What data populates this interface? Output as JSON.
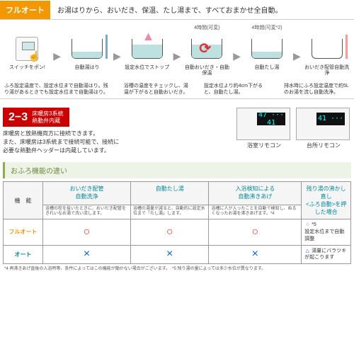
{
  "header": {
    "badge": "フルオート",
    "text": "お湯はりから、おいだき、保温、たし湯まで、すべておまかせ全自動。"
  },
  "icons": [
    {
      "timing": "",
      "label": "スイッチをポン!"
    },
    {
      "timing": "",
      "label": "自動湯はり"
    },
    {
      "timing": "",
      "label": "設定水位でストップ"
    },
    {
      "timing": "4時間(可変)",
      "label": "自動おいだき・自動保温"
    },
    {
      "timing": "4時間(可変*2)",
      "label": "自動たし湯"
    },
    {
      "timing": "",
      "label": "おいだき配管自動洗浄"
    }
  ],
  "descs": [
    "ふろ設定温度で、設定水位まで自動湯はり。残り湯があるときでも設定水位まで自動湯はり。",
    "浴槽の温度をチェックし、湯温が下がると自動おいだき。",
    "設定水位より約4cm下がると、自動たし湯。",
    "排水時にふろ設定温度で約5Lのお湯を流し自動洗浄。"
  ],
  "sec2": {
    "num": "2−3",
    "badge": "床暖房3系統\n熱動弁内蔵",
    "desc": "床暖房と放熱機両方に接続できます。\nまた、床暖房は3系統まで接続可能で、接続に\n必要な熱動弁ヘッダーは内蔵しています。"
  },
  "remotes": [
    {
      "disp": "47 ··· 41",
      "label": "浴室リモコン"
    },
    {
      "disp": "41 ···",
      "label": "台所リモコン"
    }
  ],
  "table": {
    "title": "おふろ機能の違い",
    "row_header": "機　能",
    "cols": [
      {
        "h": "おいだき配管\n自動洗浄",
        "sub": "浴槽の栓を抜いたときに、おいだき配管をきれいなお湯で洗い流します。"
      },
      {
        "h": "自動たし湯",
        "sub": "浴槽の湯量が減ると、自動的に設定水位まで「たし湯」します。"
      },
      {
        "h": "入浴検知による\n自動沸きあげ",
        "sub": "浴槽に人が入ったことを自動で検知し、ぬるくなったお湯を沸きあげます。*4"
      },
      {
        "h": "残り湯の沸かし直し\n<ふろ自動>を押した場合",
        "sub": ""
      }
    ],
    "rows": [
      {
        "label": "フルオート",
        "cls": "full",
        "marks": [
          "○",
          "○",
          "○"
        ],
        "last": [
          {
            "m": "○",
            "c": "dot-o",
            "t": "*5\n設定水位まで自動調整"
          }
        ]
      },
      {
        "label": "オート",
        "cls": "auto",
        "marks": [
          "×",
          "×",
          "×"
        ],
        "last": [
          {
            "m": "△",
            "c": "dot-t",
            "t": "湯量にバラツキが起こります"
          }
        ]
      }
    ],
    "notes": "*4 再沸きあげ直後の入浴時等、条件によってはこの機能が働かない場合がございます。　*5 残り湯の量によっては多少水位が異なります。"
  }
}
